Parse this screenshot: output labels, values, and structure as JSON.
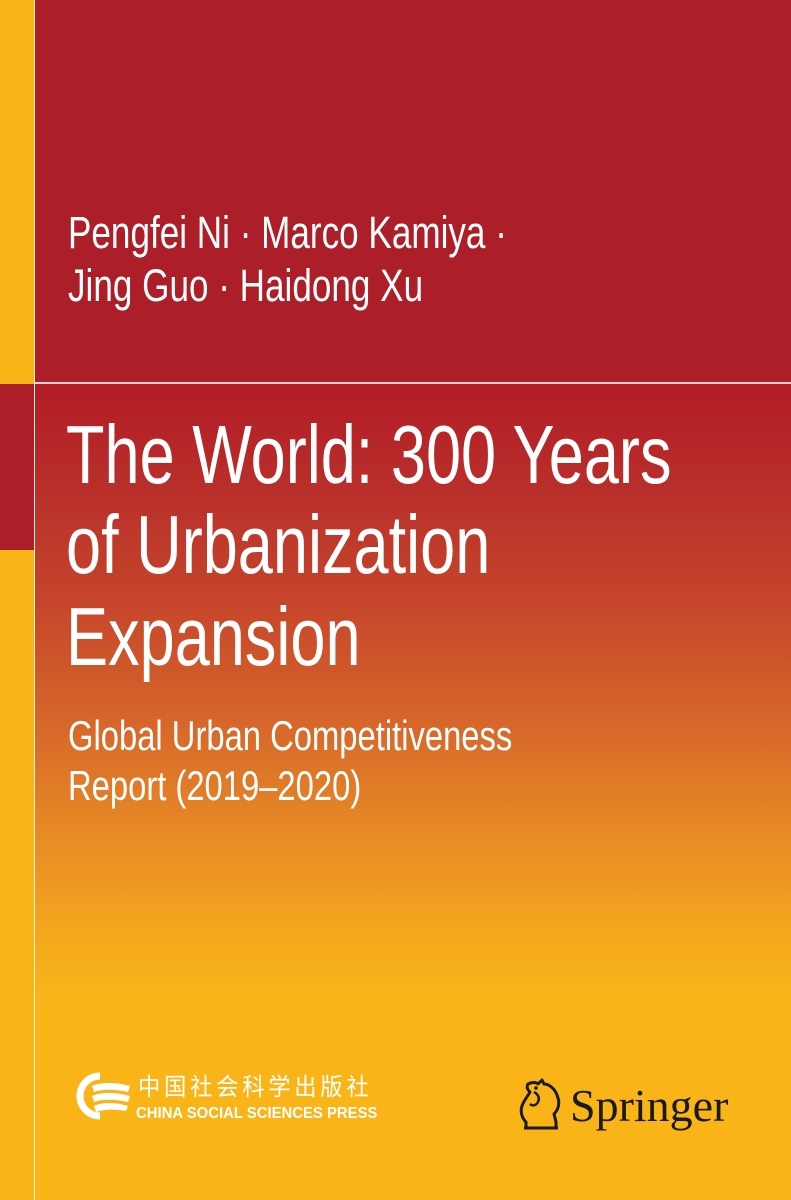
{
  "cover": {
    "colors": {
      "red": "#AD1F28",
      "yellow": "#F9B518",
      "orange": "#E88B25",
      "white": "#FFFFFF",
      "springer_text": "#1A1A1A"
    },
    "authors": {
      "line1": "Pengfei Ni · Marco Kamiya ·",
      "line2": "Jing Guo · Haidong Xu"
    },
    "title": {
      "line1": "The World: 300 Years",
      "line2": "of Urbanization",
      "line3": "Expansion"
    },
    "subtitle": {
      "line1": "Global Urban Competitiveness",
      "line2": "Report (2019–2020)"
    },
    "publishers": {
      "china_social_sciences_press": {
        "chinese_name": "中国社会科学出版社",
        "english_name": "CHINA SOCIAL SCIENCES PRESS",
        "icon": "cssp-logo-icon"
      },
      "springer": {
        "name": "Springer",
        "icon": "springer-horse-icon"
      }
    }
  }
}
